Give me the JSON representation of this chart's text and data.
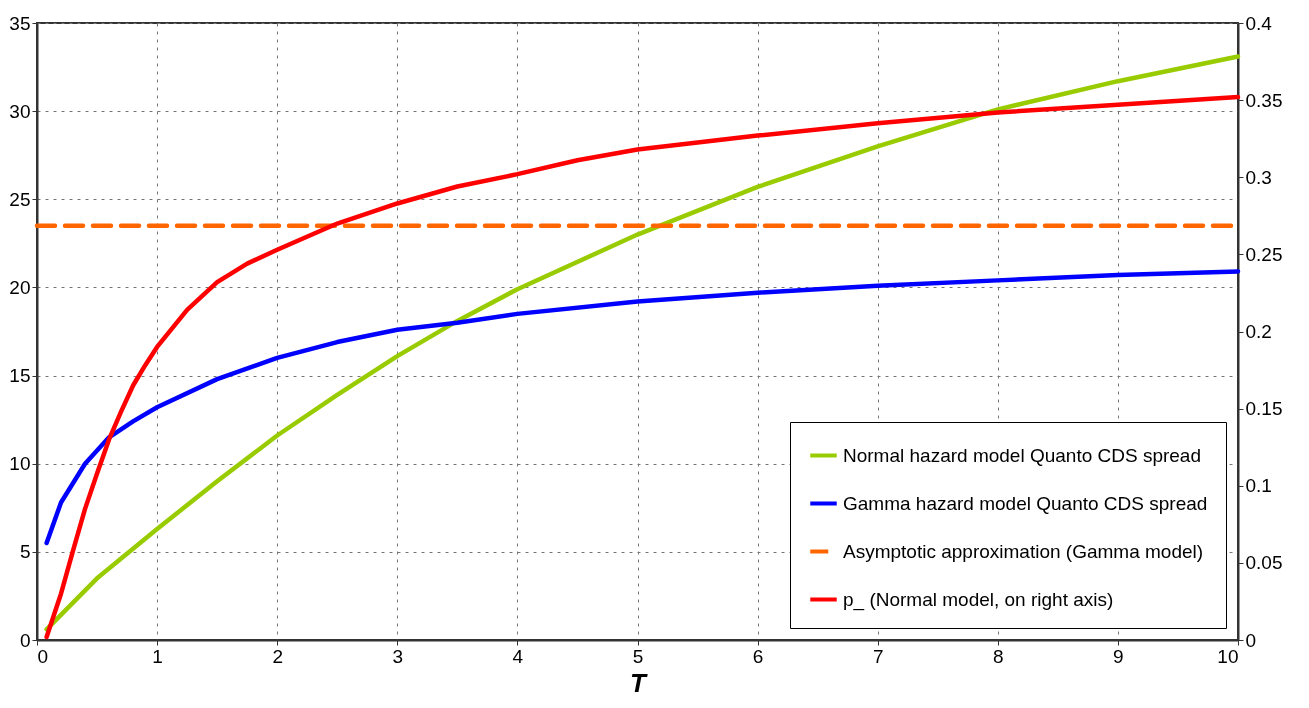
{
  "chart_data": {
    "type": "line",
    "xlabel": "T",
    "xlim": [
      0,
      10
    ],
    "xticks": [
      0,
      1,
      2,
      3,
      4,
      5,
      6,
      7,
      8,
      9,
      10
    ],
    "ylim": [
      0,
      35
    ],
    "yticks": [
      0,
      5,
      10,
      15,
      20,
      25,
      30,
      35
    ],
    "y2lim": [
      0,
      0.4
    ],
    "y2ticks": [
      0,
      0.05,
      0.1,
      0.15,
      0.2,
      0.25,
      0.3,
      0.35,
      0.4
    ],
    "grid": true,
    "legend": "bottom right",
    "series": [
      {
        "name": "Normal hazard model Quanto CDS spread",
        "color": "#99cc00",
        "line_style": "solid",
        "x": [
          0.08,
          0.5,
          1,
          1.5,
          2,
          2.5,
          3,
          3.5,
          4,
          5,
          6,
          7,
          8,
          9,
          10
        ],
        "values": [
          0.6,
          3.5,
          6.3,
          9.0,
          11.6,
          13.9,
          16.1,
          18.1,
          19.9,
          23.0,
          25.7,
          28.0,
          30.1,
          31.7,
          33.1
        ]
      },
      {
        "name": "Gamma hazard model Quanto CDS spread",
        "color": "#0000ff",
        "line_style": "solid",
        "x": [
          0.08,
          0.2,
          0.4,
          0.6,
          0.8,
          1,
          1.5,
          2,
          2.5,
          3,
          3.5,
          4,
          5,
          6,
          7,
          8,
          9,
          10
        ],
        "values": [
          5.5,
          7.8,
          10.0,
          11.5,
          12.4,
          13.2,
          14.8,
          16.0,
          16.9,
          17.6,
          18.0,
          18.5,
          19.2,
          19.7,
          20.1,
          20.4,
          20.7,
          20.9
        ]
      },
      {
        "name": "Asymptotic approximation (Gamma model)",
        "color": "#ff6600",
        "line_style": "dashed",
        "x": [
          0,
          10
        ],
        "values": [
          23.5,
          23.5
        ]
      },
      {
        "name": "p_ (Normal model, on right axis)",
        "color": "#ff0000",
        "line_style": "solid",
        "axis": "y2",
        "x": [
          0.08,
          0.2,
          0.3,
          0.4,
          0.5,
          0.6,
          0.7,
          0.8,
          0.9,
          1,
          1.25,
          1.5,
          1.75,
          2,
          2.5,
          3,
          3.5,
          4,
          4.5,
          5,
          6,
          7,
          8,
          9,
          10
        ],
        "values": [
          0.002,
          0.03,
          0.058,
          0.085,
          0.108,
          0.13,
          0.148,
          0.165,
          0.178,
          0.19,
          0.214,
          0.232,
          0.244,
          0.253,
          0.27,
          0.283,
          0.294,
          0.302,
          0.311,
          0.318,
          0.327,
          0.335,
          0.342,
          0.347,
          0.352
        ]
      }
    ]
  }
}
